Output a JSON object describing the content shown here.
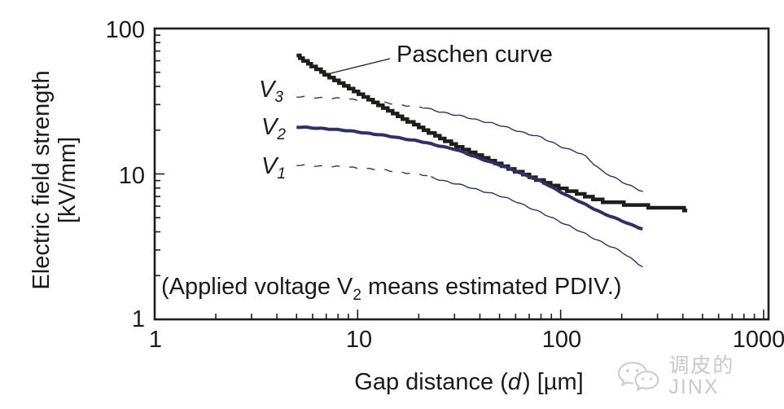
{
  "figure": {
    "y_axis": {
      "label_line1": "Electric field strength",
      "label_line2": "[kV/mm]",
      "ticks": [
        "100",
        "10",
        "1"
      ]
    },
    "x_axis": {
      "label_pre": "Gap distance (",
      "label_var": "d",
      "label_post": ") [µm]",
      "ticks": [
        "1",
        "10",
        "100",
        "1000"
      ]
    },
    "paschen_label": "Paschen curve",
    "curve_labels": [
      {
        "symbol": "V",
        "sub": "3"
      },
      {
        "symbol": "V",
        "sub": "2"
      },
      {
        "symbol": "V",
        "sub": "1"
      }
    ],
    "annotation": {
      "pre": "(Applied voltage V",
      "sub": "2",
      "post": "means estimated PDIV.)"
    },
    "watermark": {
      "icon": "wechat-icon",
      "text": "调皮的JINX"
    }
  },
  "colors": {
    "navy": "#2e3263",
    "black": "#1d1d1b",
    "text": "#1a1a1a",
    "watermark": "#c9c9c9"
  },
  "chart_data": {
    "type": "line",
    "title": "",
    "xlabel": "Gap distance (d) [µm]",
    "ylabel": "Electric field strength [kV/mm]",
    "x_scale": "log",
    "y_scale": "log",
    "xlim": [
      1,
      1000
    ],
    "ylim": [
      1,
      100
    ],
    "grid": false,
    "legend_position": "inline-labels",
    "annotations": [
      "Paschen curve",
      "(Applied voltage V2 means estimated PDIV.)"
    ],
    "series": [
      {
        "name": "V3",
        "color": "navy",
        "line": "thin",
        "dashed_until_x": 21,
        "x": [
          5,
          8,
          12,
          20,
          30,
          45,
          60,
          80,
          100,
          130,
          160,
          200,
          255
        ],
        "y": [
          34,
          33,
          31.5,
          29,
          25.5,
          22.5,
          20,
          17.8,
          15.5,
          13.5,
          10.5,
          8.8,
          7.6
        ]
      },
      {
        "name": "V1",
        "color": "navy",
        "line": "thin",
        "dashed_until_x": 23,
        "x": [
          5,
          8,
          12,
          20,
          30,
          45,
          60,
          80,
          100,
          130,
          160,
          200,
          255
        ],
        "y": [
          11.5,
          11.2,
          10.8,
          10,
          8.6,
          7.4,
          6.5,
          5.4,
          4.7,
          3.9,
          3.4,
          2.9,
          2.3
        ]
      },
      {
        "name": "Paschen curve",
        "color": "black",
        "line": "thick-stepped",
        "x": [
          5,
          7,
          11,
          17.5,
          30,
          53,
          93,
          160,
          260,
          420
        ],
        "y": [
          65,
          48,
          33.5,
          23.3,
          15.8,
          11.2,
          8.3,
          6.5,
          6.0,
          5.7
        ]
      },
      {
        "name": "V2",
        "color": "navy",
        "line": "thick",
        "x": [
          5,
          7,
          10,
          15,
          20,
          30,
          40,
          55,
          80,
          110,
          160,
          220,
          265
        ],
        "y": [
          21,
          20.5,
          19.5,
          18,
          16.8,
          14.8,
          12.8,
          11,
          8.9,
          7.0,
          5.4,
          4.5,
          4.1
        ]
      }
    ]
  }
}
